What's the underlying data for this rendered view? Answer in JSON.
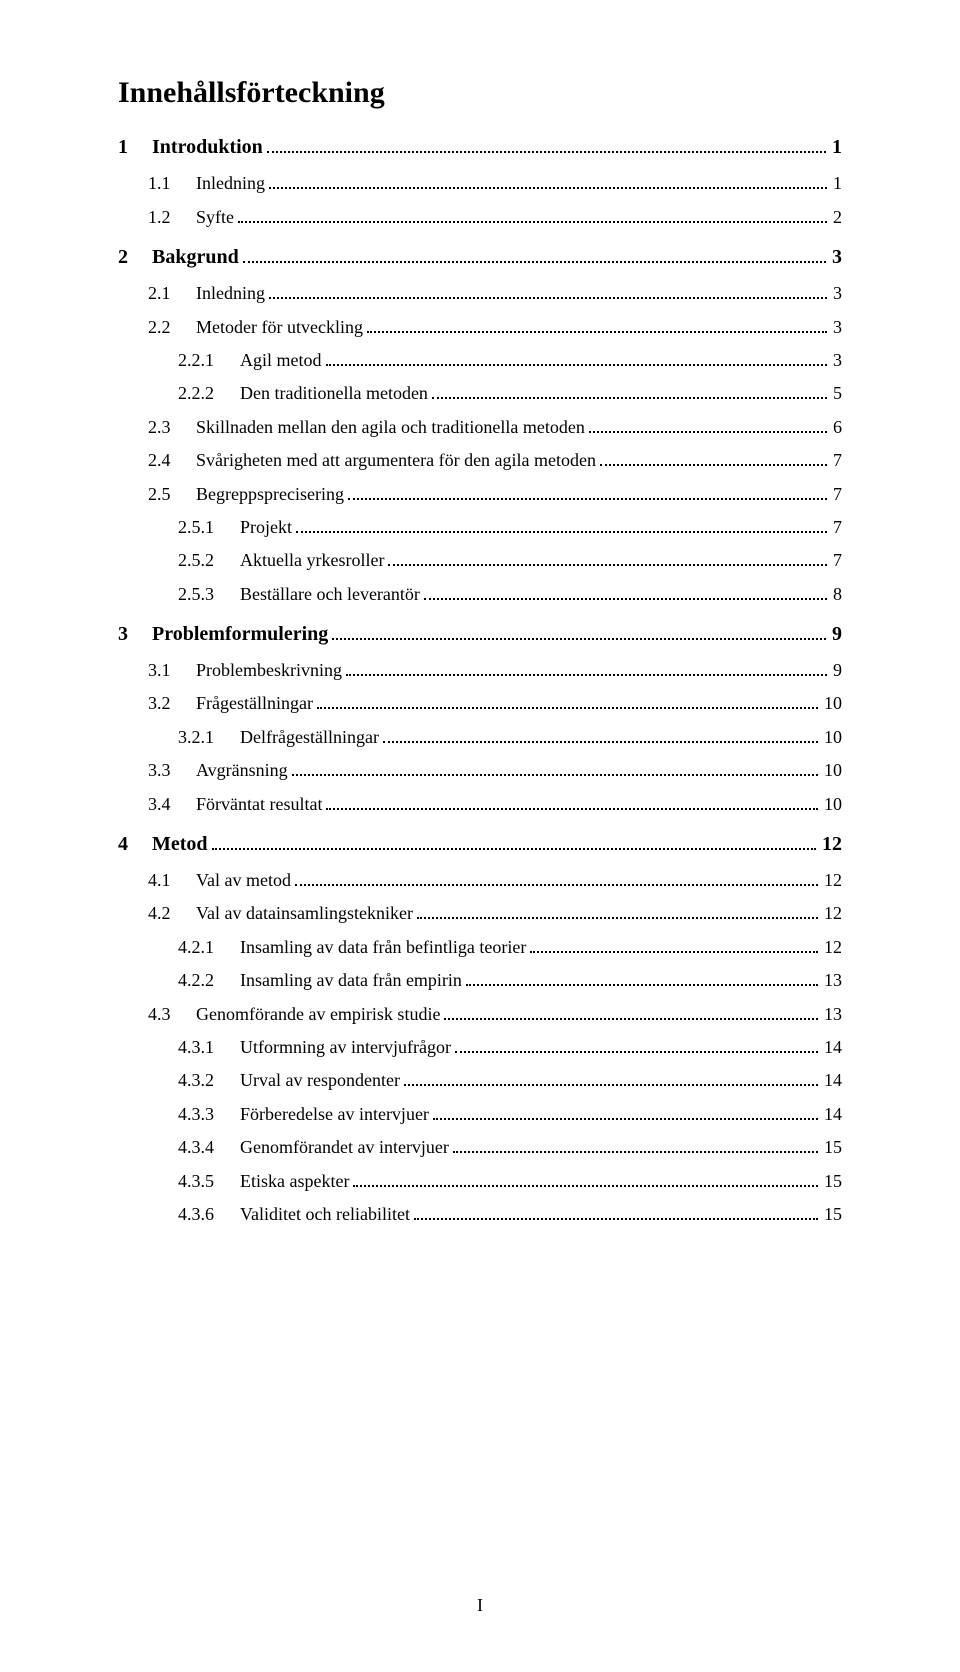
{
  "title": "Innehållsförteckning",
  "page_number": "I",
  "colors": {
    "background": "#ffffff",
    "text": "#000000",
    "leader": "#000000"
  },
  "typography": {
    "font_family": "Times New Roman",
    "title_size_pt": 22,
    "title_weight": "bold",
    "l1_size_pt": 15,
    "l1_weight": "bold",
    "l2_size_pt": 13.5,
    "l3_size_pt": 13.5
  },
  "entries": [
    {
      "level": 1,
      "num": "1",
      "label": "Introduktion",
      "page": "1"
    },
    {
      "level": 2,
      "num": "1.1",
      "label": "Inledning",
      "page": "1"
    },
    {
      "level": 2,
      "num": "1.2",
      "label": "Syfte",
      "page": "2"
    },
    {
      "level": 1,
      "num": "2",
      "label": "Bakgrund",
      "page": "3"
    },
    {
      "level": 2,
      "num": "2.1",
      "label": "Inledning",
      "page": "3"
    },
    {
      "level": 2,
      "num": "2.2",
      "label": "Metoder för utveckling",
      "page": "3"
    },
    {
      "level": 3,
      "num": "2.2.1",
      "label": "Agil metod",
      "page": "3"
    },
    {
      "level": 3,
      "num": "2.2.2",
      "label": "Den traditionella metoden",
      "page": "5"
    },
    {
      "level": 2,
      "num": "2.3",
      "label": "Skillnaden mellan den agila och traditionella metoden",
      "page": "6"
    },
    {
      "level": 2,
      "num": "2.4",
      "label": "Svårigheten med att argumentera för den agila metoden",
      "page": "7"
    },
    {
      "level": 2,
      "num": "2.5",
      "label": "Begreppsprecisering",
      "page": "7"
    },
    {
      "level": 3,
      "num": "2.5.1",
      "label": "Projekt",
      "page": "7"
    },
    {
      "level": 3,
      "num": "2.5.2",
      "label": "Aktuella yrkesroller",
      "page": "7"
    },
    {
      "level": 3,
      "num": "2.5.3",
      "label": "Beställare och leverantör",
      "page": "8"
    },
    {
      "level": 1,
      "num": "3",
      "label": "Problemformulering",
      "page": "9"
    },
    {
      "level": 2,
      "num": "3.1",
      "label": "Problembeskrivning",
      "page": "9"
    },
    {
      "level": 2,
      "num": "3.2",
      "label": "Frågeställningar",
      "page": "10"
    },
    {
      "level": 3,
      "num": "3.2.1",
      "label": "Delfrågeställningar",
      "page": "10"
    },
    {
      "level": 2,
      "num": "3.3",
      "label": "Avgränsning",
      "page": "10"
    },
    {
      "level": 2,
      "num": "3.4",
      "label": "Förväntat resultat",
      "page": "10"
    },
    {
      "level": 1,
      "num": "4",
      "label": "Metod",
      "page": "12"
    },
    {
      "level": 2,
      "num": "4.1",
      "label": "Val av metod",
      "page": "12"
    },
    {
      "level": 2,
      "num": "4.2",
      "label": "Val av datainsamlingstekniker",
      "page": "12"
    },
    {
      "level": 3,
      "num": "4.2.1",
      "label": "Insamling av data från befintliga teorier",
      "page": "12"
    },
    {
      "level": 3,
      "num": "4.2.2",
      "label": "Insamling av data från empirin",
      "page": "13"
    },
    {
      "level": 2,
      "num": "4.3",
      "label": "Genomförande av empirisk studie",
      "page": "13"
    },
    {
      "level": 3,
      "num": "4.3.1",
      "label": "Utformning av intervjufrågor",
      "page": "14"
    },
    {
      "level": 3,
      "num": "4.3.2",
      "label": "Urval av respondenter",
      "page": "14"
    },
    {
      "level": 3,
      "num": "4.3.3",
      "label": "Förberedelse av intervjuer",
      "page": "14"
    },
    {
      "level": 3,
      "num": "4.3.4",
      "label": "Genomförandet av intervjuer",
      "page": "15"
    },
    {
      "level": 3,
      "num": "4.3.5",
      "label": "Etiska aspekter",
      "page": "15"
    },
    {
      "level": 3,
      "num": "4.3.6",
      "label": "Validitet och reliabilitet",
      "page": "15"
    }
  ]
}
